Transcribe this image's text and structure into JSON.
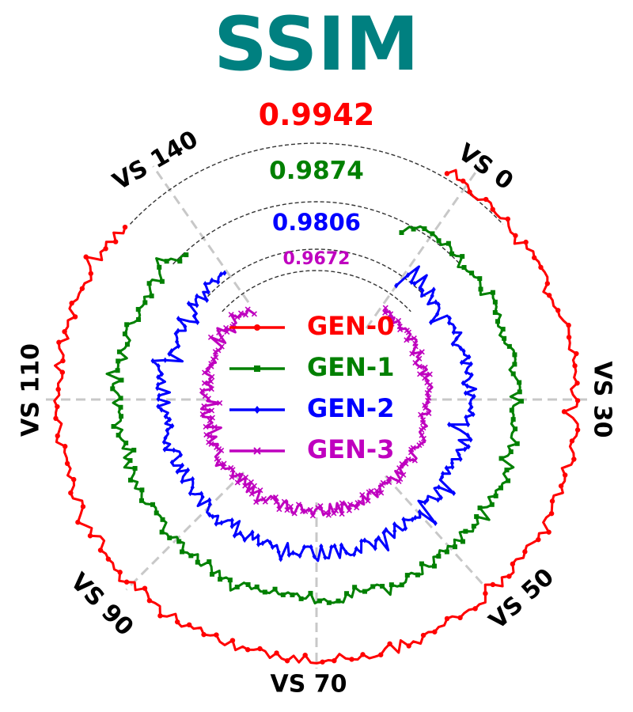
{
  "chart_data": {
    "type": "polar-line",
    "title": "SSIM",
    "title_color": "#008080",
    "angular_labels": [
      "VS 0",
      "VS 30",
      "VS 50",
      "VS 70",
      "VS 90",
      "VS 110",
      "VS 140"
    ],
    "reference_values": [
      {
        "value": "0.9942",
        "color": "#ff0000"
      },
      {
        "value": "0.9874",
        "color": "#008000"
      },
      {
        "value": "0.9806",
        "color": "#0000ff"
      },
      {
        "value": "0.9672",
        "color": "#bf00bf"
      }
    ],
    "series": [
      {
        "name": "GEN-0",
        "color": "#ff0000",
        "marker": "circle",
        "mean_ssim": 0.9942
      },
      {
        "name": "GEN-1",
        "color": "#008000",
        "marker": "square",
        "mean_ssim": 0.9874
      },
      {
        "name": "GEN-2",
        "color": "#0000ff",
        "marker": "diamond",
        "mean_ssim": 0.9806
      },
      {
        "name": "GEN-3",
        "color": "#bf00bf",
        "marker": "x",
        "mean_ssim": 0.9672
      }
    ],
    "legend_position": "center",
    "grid": true,
    "note_values": "each series traces a closed ring of per-view SSIM values; ring radius encodes SSIM level, jitter encodes per-view variation"
  }
}
